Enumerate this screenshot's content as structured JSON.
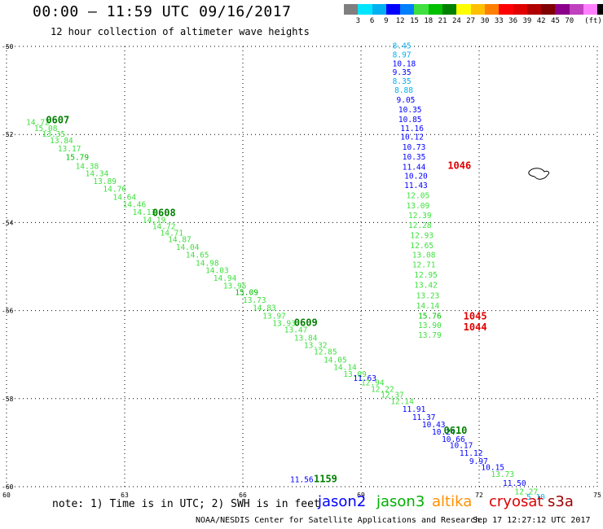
{
  "header": {
    "title": "00:00 – 11:59 UTC 09/16/2017",
    "subtitle": "12 hour collection of altimeter wave heights"
  },
  "colorbar": {
    "colors": [
      "#7f7f7f",
      "#00e5ff",
      "#00b0f0",
      "#0000ff",
      "#007fff",
      "#3fe03f",
      "#00c000",
      "#008000",
      "#ffff00",
      "#ffc000",
      "#ff7f00",
      "#ff0000",
      "#e00000",
      "#b00000",
      "#800000",
      "#8b008b",
      "#c040c0",
      "#ff80ff",
      "#000000"
    ],
    "labels": [
      "3",
      "6",
      "9",
      "12",
      "15",
      "18",
      "21",
      "24",
      "27",
      "30",
      "33",
      "36",
      "39",
      "42",
      "45",
      "70"
    ],
    "unit": "(ft)"
  },
  "chart_data": {
    "type": "scatter",
    "xlim": [
      60,
      75
    ],
    "ylim": [
      -60,
      -50
    ],
    "x_ticks": [
      "60",
      "63",
      "66",
      "69",
      "72",
      "75"
    ],
    "y_ticks": [
      "-50",
      "-52",
      "-54",
      "-56",
      "-58",
      "-60"
    ],
    "grid": true,
    "tracks": [
      {
        "name": "0607-0610",
        "points": [
          {
            "lon": 60.5,
            "lat": -51.78,
            "v": "14.72",
            "c": "#3fe03f"
          },
          {
            "lon": 60.7,
            "lat": -51.92,
            "v": "15.08",
            "c": "#3fe03f"
          },
          {
            "lon": 60.9,
            "lat": -52.05,
            "v": "13.35",
            "c": "#3fe03f"
          },
          {
            "lon": 61.1,
            "lat": -52.2,
            "v": "13.84",
            "c": "#3fe03f"
          },
          {
            "lon": 61.3,
            "lat": -52.38,
            "v": "13.17",
            "c": "#3fe03f"
          },
          {
            "lon": 61.5,
            "lat": -52.58,
            "v": "15.79",
            "c": "#00c000"
          },
          {
            "lon": 61.75,
            "lat": -52.78,
            "v": "14.38",
            "c": "#3fe03f"
          },
          {
            "lon": 62.0,
            "lat": -52.95,
            "v": "14.34",
            "c": "#3fe03f"
          },
          {
            "lon": 62.2,
            "lat": -53.12,
            "v": "13.89",
            "c": "#3fe03f"
          },
          {
            "lon": 62.45,
            "lat": -53.3,
            "v": "14.76",
            "c": "#3fe03f"
          },
          {
            "lon": 62.7,
            "lat": -53.48,
            "v": "14.64",
            "c": "#3fe03f"
          },
          {
            "lon": 62.95,
            "lat": -53.65,
            "v": "14.46",
            "c": "#3fe03f"
          },
          {
            "lon": 63.2,
            "lat": -53.83,
            "v": "14.13",
            "c": "#3fe03f"
          },
          {
            "lon": 63.45,
            "lat": -54.0,
            "v": "14.19",
            "c": "#3fe03f"
          },
          {
            "lon": 63.7,
            "lat": -54.15,
            "v": "14.72",
            "c": "#3fe03f"
          },
          {
            "lon": 63.9,
            "lat": -54.3,
            "v": "14.71",
            "c": "#3fe03f"
          },
          {
            "lon": 64.1,
            "lat": -54.45,
            "v": "14.87",
            "c": "#3fe03f"
          },
          {
            "lon": 64.3,
            "lat": -54.62,
            "v": "14.04",
            "c": "#3fe03f"
          },
          {
            "lon": 64.55,
            "lat": -54.8,
            "v": "14.65",
            "c": "#3fe03f"
          },
          {
            "lon": 64.8,
            "lat": -54.98,
            "v": "14.98",
            "c": "#3fe03f"
          },
          {
            "lon": 65.05,
            "lat": -55.15,
            "v": "14.03",
            "c": "#3fe03f"
          },
          {
            "lon": 65.25,
            "lat": -55.32,
            "v": "14.94",
            "c": "#3fe03f"
          },
          {
            "lon": 65.5,
            "lat": -55.5,
            "v": "13.95",
            "c": "#3fe03f"
          },
          {
            "lon": 65.8,
            "lat": -55.65,
            "v": "15.09",
            "c": "#00c000"
          },
          {
            "lon": 66.0,
            "lat": -55.82,
            "v": "13.73",
            "c": "#3fe03f"
          },
          {
            "lon": 66.25,
            "lat": -56.0,
            "v": "14.83",
            "c": "#3fe03f"
          },
          {
            "lon": 66.5,
            "lat": -56.18,
            "v": "13.97",
            "c": "#3fe03f"
          },
          {
            "lon": 66.75,
            "lat": -56.35,
            "v": "13.93",
            "c": "#3fe03f"
          },
          {
            "lon": 67.05,
            "lat": -56.5,
            "v": "13.47",
            "c": "#3fe03f"
          },
          {
            "lon": 67.3,
            "lat": -56.68,
            "v": "13.84",
            "c": "#3fe03f"
          },
          {
            "lon": 67.55,
            "lat": -56.85,
            "v": "13.32",
            "c": "#3fe03f"
          },
          {
            "lon": 67.8,
            "lat": -57.0,
            "v": "12.85",
            "c": "#3fe03f"
          },
          {
            "lon": 68.05,
            "lat": -57.18,
            "v": "14.05",
            "c": "#3fe03f"
          },
          {
            "lon": 68.3,
            "lat": -57.35,
            "v": "14.14",
            "c": "#3fe03f"
          },
          {
            "lon": 68.55,
            "lat": -57.5,
            "v": "13.09",
            "c": "#3fe03f"
          },
          {
            "lon": 68.8,
            "lat": -57.6,
            "v": "11.63",
            "c": "#0000ff"
          },
          {
            "lon": 69.0,
            "lat": -57.7,
            "v": "12.94",
            "c": "#3fe03f"
          },
          {
            "lon": 69.25,
            "lat": -57.85,
            "v": "12.22",
            "c": "#3fe03f"
          },
          {
            "lon": 69.5,
            "lat": -57.98,
            "v": "12.37",
            "c": "#3fe03f"
          },
          {
            "lon": 69.75,
            "lat": -58.12,
            "v": "12.14",
            "c": "#3fe03f"
          },
          {
            "lon": 70.05,
            "lat": -58.3,
            "v": "11.91",
            "c": "#0000ff"
          },
          {
            "lon": 70.3,
            "lat": -58.48,
            "v": "11.37",
            "c": "#0000ff"
          },
          {
            "lon": 70.55,
            "lat": -58.65,
            "v": "10.43",
            "c": "#0000ff"
          },
          {
            "lon": 70.8,
            "lat": -58.82,
            "v": "10.24",
            "c": "#0000ff"
          },
          {
            "lon": 71.05,
            "lat": -58.98,
            "v": "10.66",
            "c": "#0000ff"
          },
          {
            "lon": 71.25,
            "lat": -59.12,
            "v": "10.17",
            "c": "#0000ff"
          },
          {
            "lon": 71.5,
            "lat": -59.3,
            "v": "11.12",
            "c": "#0000ff"
          },
          {
            "lon": 71.75,
            "lat": -59.48,
            "v": "9.97",
            "c": "#0000ff"
          },
          {
            "lon": 72.05,
            "lat": -59.62,
            "v": "10.15",
            "c": "#0000ff"
          },
          {
            "lon": 72.3,
            "lat": -59.78,
            "v": "13.73",
            "c": "#3fe03f"
          },
          {
            "lon": 72.6,
            "lat": -59.98,
            "v": "11.50",
            "c": "#0000ff"
          },
          {
            "lon": 72.9,
            "lat": -60.18,
            "v": "12.27",
            "c": "#3fe03f"
          },
          {
            "lon": 73.2,
            "lat": -60.3,
            "v": "5.10",
            "c": "#00b0f0"
          }
        ]
      },
      {
        "name": "1044-1046",
        "points": [
          {
            "lon": 69.8,
            "lat": -50.05,
            "v": "8.45",
            "c": "#00b0f0"
          },
          {
            "lon": 69.8,
            "lat": -50.25,
            "v": "8.97",
            "c": "#00b0f0"
          },
          {
            "lon": 69.8,
            "lat": -50.45,
            "v": "10.18",
            "c": "#0000ff"
          },
          {
            "lon": 69.8,
            "lat": -50.65,
            "v": "9.35",
            "c": "#0000ff"
          },
          {
            "lon": 69.8,
            "lat": -50.85,
            "v": "8.35",
            "c": "#00b0f0"
          },
          {
            "lon": 69.85,
            "lat": -51.05,
            "v": "8.88",
            "c": "#00b0f0"
          },
          {
            "lon": 69.9,
            "lat": -51.28,
            "v": "9.05",
            "c": "#0000ff"
          },
          {
            "lon": 69.95,
            "lat": -51.5,
            "v": "10.35",
            "c": "#0000ff"
          },
          {
            "lon": 69.95,
            "lat": -51.72,
            "v": "10.85",
            "c": "#0000ff"
          },
          {
            "lon": 70.0,
            "lat": -51.92,
            "v": "11.16",
            "c": "#0000ff"
          },
          {
            "lon": 70.0,
            "lat": -52.12,
            "v": "10.12",
            "c": "#0000ff"
          },
          {
            "lon": 70.05,
            "lat": -52.35,
            "v": "10.73",
            "c": "#0000ff"
          },
          {
            "lon": 70.05,
            "lat": -52.57,
            "v": "10.35",
            "c": "#0000ff"
          },
          {
            "lon": 70.05,
            "lat": -52.8,
            "v": "11.44",
            "c": "#0000ff"
          },
          {
            "lon": 70.1,
            "lat": -53.0,
            "v": "10.20",
            "c": "#0000ff"
          },
          {
            "lon": 70.1,
            "lat": -53.22,
            "v": "11.43",
            "c": "#0000ff"
          },
          {
            "lon": 70.15,
            "lat": -53.45,
            "v": "12.05",
            "c": "#3fe03f"
          },
          {
            "lon": 70.15,
            "lat": -53.68,
            "v": "13.09",
            "c": "#3fe03f"
          },
          {
            "lon": 70.2,
            "lat": -53.9,
            "v": "12.39",
            "c": "#3fe03f"
          },
          {
            "lon": 70.2,
            "lat": -54.12,
            "v": "12.28",
            "c": "#3fe03f"
          },
          {
            "lon": 70.25,
            "lat": -54.35,
            "v": "12.93",
            "c": "#3fe03f"
          },
          {
            "lon": 70.25,
            "lat": -54.58,
            "v": "12.65",
            "c": "#3fe03f"
          },
          {
            "lon": 70.3,
            "lat": -54.8,
            "v": "13.08",
            "c": "#3fe03f"
          },
          {
            "lon": 70.3,
            "lat": -55.02,
            "v": "12.71",
            "c": "#3fe03f"
          },
          {
            "lon": 70.35,
            "lat": -55.25,
            "v": "12.95",
            "c": "#3fe03f"
          },
          {
            "lon": 70.35,
            "lat": -55.48,
            "v": "13.42",
            "c": "#3fe03f"
          },
          {
            "lon": 70.4,
            "lat": -55.72,
            "v": "13.23",
            "c": "#3fe03f"
          },
          {
            "lon": 70.4,
            "lat": -55.95,
            "v": "14.14",
            "c": "#3fe03f"
          },
          {
            "lon": 70.45,
            "lat": -56.18,
            "v": "15.76",
            "c": "#00c000"
          },
          {
            "lon": 70.45,
            "lat": -56.4,
            "v": "13.90",
            "c": "#3fe03f"
          },
          {
            "lon": 70.45,
            "lat": -56.62,
            "v": "13.79",
            "c": "#3fe03f"
          }
        ]
      },
      {
        "name": "1159",
        "points": [
          {
            "lon": 67.2,
            "lat": -59.9,
            "v": "11.56",
            "c": "#0000ff"
          }
        ]
      }
    ],
    "time_labels": [
      {
        "lon": 61.0,
        "lat": -51.75,
        "text": "0607",
        "c": "#008000"
      },
      {
        "lon": 63.7,
        "lat": -53.85,
        "text": "0608",
        "c": "#008000"
      },
      {
        "lon": 67.3,
        "lat": -56.35,
        "text": "0609",
        "c": "#008000"
      },
      {
        "lon": 71.1,
        "lat": -58.8,
        "text": "0610",
        "c": "#008000"
      },
      {
        "lon": 71.2,
        "lat": -52.78,
        "text": "1046",
        "c": "#e00000"
      },
      {
        "lon": 71.6,
        "lat": -56.2,
        "text": "1045",
        "c": "#e00000"
      },
      {
        "lon": 71.6,
        "lat": -56.45,
        "text": "1044",
        "c": "#e00000"
      },
      {
        "lon": 67.8,
        "lat": -59.9,
        "text": "1159",
        "c": "#008000"
      }
    ]
  },
  "note": "note: 1) Time is in UTC; 2) SWH is in feet",
  "satellites": [
    {
      "name": "jason2",
      "color": "#0000ff"
    },
    {
      "name": "jason3",
      "color": "#00b000"
    },
    {
      "name": "altika",
      "color": "#ff9000"
    },
    {
      "name": "cryosat",
      "color": "#e00000"
    },
    {
      "name": "s3a",
      "color": "#a00000"
    }
  ],
  "footer": {
    "left": "NOAA/NESDIS Center for Satellite Applications and Research",
    "right": "Sep 17 12:27:12 UTC 2017"
  }
}
